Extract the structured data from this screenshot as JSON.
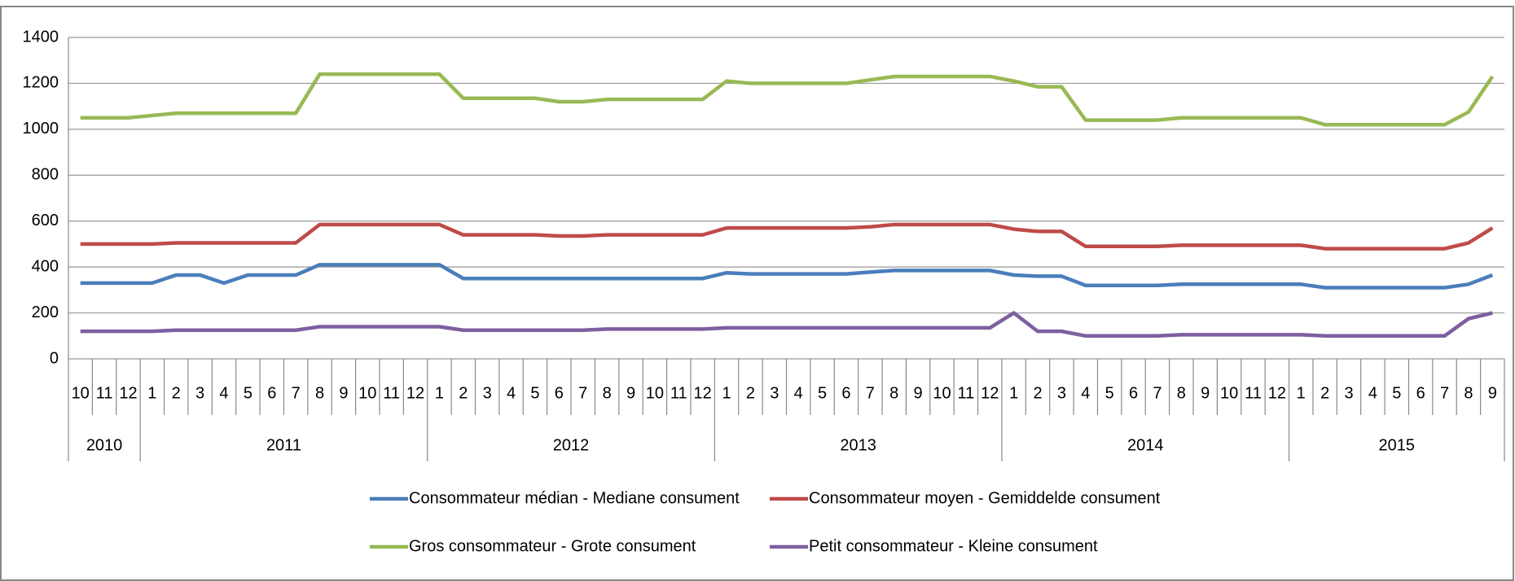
{
  "chart_data": {
    "type": "line",
    "groups": [
      {
        "label": "2010",
        "categories": [
          "10",
          "11",
          "12"
        ]
      },
      {
        "label": "2011",
        "categories": [
          "1",
          "2",
          "3",
          "4",
          "5",
          "6",
          "7",
          "8",
          "9",
          "10",
          "11",
          "12"
        ]
      },
      {
        "label": "2012",
        "categories": [
          "1",
          "2",
          "3",
          "4",
          "5",
          "6",
          "7",
          "8",
          "9",
          "10",
          "11",
          "12"
        ]
      },
      {
        "label": "2013",
        "categories": [
          "1",
          "2",
          "3",
          "4",
          "5",
          "6",
          "7",
          "8",
          "9",
          "10",
          "11",
          "12"
        ]
      },
      {
        "label": "2014",
        "categories": [
          "1",
          "2",
          "3",
          "4",
          "5",
          "6",
          "7",
          "8",
          "9",
          "10",
          "11",
          "12"
        ]
      },
      {
        "label": "2015",
        "categories": [
          "1",
          "2",
          "3",
          "4",
          "5",
          "6",
          "7",
          "8",
          "9"
        ]
      }
    ],
    "series": [
      {
        "name": "Consommateur médian - Mediane consument",
        "color": "#4a7ebb",
        "values": [
          330,
          330,
          330,
          330,
          365,
          365,
          330,
          365,
          365,
          365,
          410,
          410,
          410,
          410,
          410,
          410,
          350,
          350,
          350,
          350,
          350,
          350,
          350,
          350,
          350,
          350,
          350,
          375,
          370,
          370,
          370,
          370,
          370,
          378,
          385,
          385,
          385,
          385,
          385,
          365,
          360,
          360,
          320,
          320,
          320,
          320,
          325,
          325,
          325,
          325,
          325,
          325,
          310,
          310,
          310,
          310,
          310,
          310,
          325,
          365
        ]
      },
      {
        "name": "Consommateur moyen - Gemiddelde consument",
        "color": "#be4b48",
        "values": [
          500,
          500,
          500,
          500,
          505,
          505,
          505,
          505,
          505,
          505,
          585,
          585,
          585,
          585,
          585,
          585,
          540,
          540,
          540,
          540,
          535,
          535,
          540,
          540,
          540,
          540,
          540,
          570,
          570,
          570,
          570,
          570,
          570,
          575,
          585,
          585,
          585,
          585,
          585,
          565,
          555,
          555,
          490,
          490,
          490,
          490,
          495,
          495,
          495,
          495,
          495,
          495,
          480,
          480,
          480,
          480,
          480,
          480,
          505,
          570
        ]
      },
      {
        "name": "Gros consommateur - Grote consument",
        "color": "#98b954",
        "values": [
          1050,
          1050,
          1050,
          1060,
          1070,
          1070,
          1070,
          1070,
          1070,
          1070,
          1240,
          1240,
          1240,
          1240,
          1240,
          1240,
          1135,
          1135,
          1135,
          1135,
          1120,
          1120,
          1130,
          1130,
          1130,
          1130,
          1130,
          1210,
          1200,
          1200,
          1200,
          1200,
          1200,
          1215,
          1230,
          1230,
          1230,
          1230,
          1230,
          1210,
          1185,
          1185,
          1040,
          1040,
          1040,
          1040,
          1050,
          1050,
          1050,
          1050,
          1050,
          1050,
          1020,
          1020,
          1020,
          1020,
          1020,
          1020,
          1075,
          1230
        ]
      },
      {
        "name": "Petit consommateur - Kleine consument",
        "color": "#7d60a0",
        "values": [
          120,
          120,
          120,
          120,
          125,
          125,
          125,
          125,
          125,
          125,
          140,
          140,
          140,
          140,
          140,
          140,
          125,
          125,
          125,
          125,
          125,
          125,
          130,
          130,
          130,
          130,
          130,
          135,
          135,
          135,
          135,
          135,
          135,
          135,
          135,
          135,
          135,
          135,
          135,
          200,
          120,
          120,
          100,
          100,
          100,
          100,
          105,
          105,
          105,
          105,
          105,
          105,
          100,
          100,
          100,
          100,
          100,
          100,
          175,
          200
        ]
      }
    ],
    "ylim": [
      0,
      1400
    ],
    "yticks": [
      0,
      200,
      400,
      600,
      800,
      1000,
      1200,
      1400
    ],
    "grid": true
  }
}
